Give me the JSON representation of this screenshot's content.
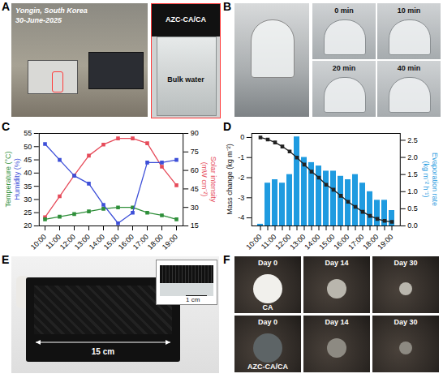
{
  "panels": [
    {
      "letter": "A",
      "location": "Yongin, South Korea",
      "date": "30-June-2025",
      "inset_labels": [
        "AZC-CA/CA",
        "Bulk water"
      ]
    },
    {
      "letter": "B",
      "times": [
        "0 min",
        "10 min",
        "20 min",
        "40 min"
      ]
    },
    {
      "letter": "E",
      "width_label": "15 cm",
      "scale_label": "1 cm"
    },
    {
      "letter": "F",
      "rows": [
        {
          "sample": "CA",
          "days": [
            "Day 0",
            "Day 14",
            "Day 30"
          ]
        },
        {
          "sample": "AZC-CA/CA",
          "days": [
            "Day 0",
            "Day 14",
            "Day 30"
          ]
        }
      ]
    }
  ],
  "chart_data": [
    {
      "panel": "C",
      "type": "line",
      "marker": "square",
      "categories": [
        "10:00",
        "11:00",
        "12:00",
        "13:00",
        "14:00",
        "15:00",
        "16:00",
        "17:00",
        "18:00",
        "19:00"
      ],
      "ylim": [
        20,
        55
      ],
      "yticks": [
        20,
        25,
        30,
        35,
        40,
        45,
        50,
        55
      ],
      "y2lim": [
        15,
        90
      ],
      "y2ticks": [
        15,
        30,
        45,
        60,
        75,
        90
      ],
      "series": [
        {
          "name": "Temperature (°C)",
          "color": "#2f8f3a",
          "values": [
            22.5,
            23.5,
            24.5,
            25.5,
            26.5,
            27,
            27,
            25,
            24,
            22.5
          ]
        },
        {
          "name": "Humidity (%)",
          "color": "#3d4fd8",
          "values": [
            51,
            45,
            39,
            36,
            28,
            21,
            25,
            44,
            44,
            45
          ]
        },
        {
          "name": "Solar intensity (mW cm⁻²)",
          "color": "#e64b5a",
          "axis": "y2",
          "values": [
            22,
            39,
            56,
            72,
            81,
            86,
            86,
            82,
            63,
            48
          ]
        }
      ]
    },
    {
      "panel": "D",
      "type": "bar",
      "categories": [
        "10:00",
        null,
        "11:00",
        null,
        "12:00",
        null,
        "13:00",
        null,
        "14:00",
        null,
        "15:00",
        null,
        "16:00",
        null,
        "17:00",
        null,
        "18:00",
        null,
        "19:00"
      ],
      "ylim": [
        -4.4,
        0.2
      ],
      "yticks": [
        -4,
        -3,
        -2,
        -1,
        0
      ],
      "y2lim": [
        0,
        2.7
      ],
      "y2ticks": [
        {
          "value": 0,
          "label": "0.0"
        },
        {
          "value": 0.5,
          "label": "0.5"
        },
        {
          "value": 1,
          "label": "1.0"
        },
        {
          "value": 1.5,
          "label": "1.5"
        },
        {
          "value": 2,
          "label": "2.0"
        },
        {
          "value": 2.5,
          "label": "2.5"
        }
      ],
      "series": [
        {
          "name": "Mass change (kg m⁻²)",
          "type": "line",
          "marker": "square",
          "color": "#222222",
          "values": [
            0,
            -0.1,
            -0.25,
            -0.45,
            -0.7,
            -1.0,
            -1.35,
            -1.7,
            -2.0,
            -2.35,
            -2.6,
            -2.9,
            -3.2,
            -3.45,
            -3.7,
            -3.9,
            -4.05,
            -4.15,
            -4.2
          ]
        },
        {
          "name": "Evaporation rate (kg m⁻² h⁻¹)",
          "type": "bar",
          "axis": "y2",
          "color": "#1f9be0",
          "values": [
            0.05,
            1.25,
            1.35,
            1.25,
            1.5,
            2.6,
            2.0,
            1.85,
            1.75,
            1.6,
            1.6,
            1.45,
            1.35,
            1.5,
            1.25,
            1.0,
            0.75,
            0.75,
            0.45
          ]
        }
      ]
    }
  ]
}
